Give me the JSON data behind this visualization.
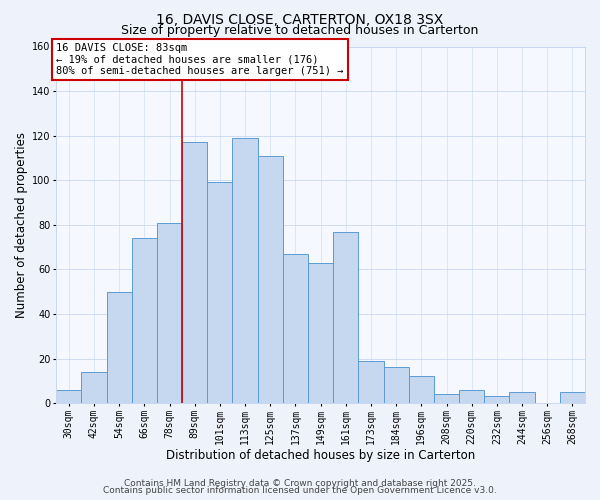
{
  "title": "16, DAVIS CLOSE, CARTERTON, OX18 3SX",
  "subtitle": "Size of property relative to detached houses in Carterton",
  "xlabel": "Distribution of detached houses by size in Carterton",
  "ylabel": "Number of detached properties",
  "bar_labels": [
    "30sqm",
    "42sqm",
    "54sqm",
    "66sqm",
    "78sqm",
    "89sqm",
    "101sqm",
    "113sqm",
    "125sqm",
    "137sqm",
    "149sqm",
    "161sqm",
    "173sqm",
    "184sqm",
    "196sqm",
    "208sqm",
    "220sqm",
    "232sqm",
    "244sqm",
    "256sqm",
    "268sqm"
  ],
  "bar_values": [
    6,
    14,
    50,
    74,
    81,
    117,
    99,
    119,
    111,
    67,
    63,
    77,
    19,
    16,
    12,
    4,
    6,
    3,
    5,
    0,
    5
  ],
  "bar_color": "#c5d8f0",
  "bar_edge_color": "#5b9bd5",
  "ylim": [
    0,
    160
  ],
  "yticks": [
    0,
    20,
    40,
    60,
    80,
    100,
    120,
    140,
    160
  ],
  "vline_x": 4.5,
  "vline_color": "#cc0000",
  "annotation_title": "16 DAVIS CLOSE: 83sqm",
  "annotation_line1": "← 19% of detached houses are smaller (176)",
  "annotation_line2": "80% of semi-detached houses are larger (751) →",
  "footer1": "Contains HM Land Registry data © Crown copyright and database right 2025.",
  "footer2": "Contains public sector information licensed under the Open Government Licence v3.0.",
  "background_color": "#eef2fb",
  "plot_bg_color": "#f5f8ff",
  "grid_color": "#c8d8f0",
  "title_fontsize": 10,
  "subtitle_fontsize": 9,
  "axis_label_fontsize": 8.5,
  "tick_fontsize": 7,
  "footer_fontsize": 6.5,
  "annotation_fontsize": 7.5
}
